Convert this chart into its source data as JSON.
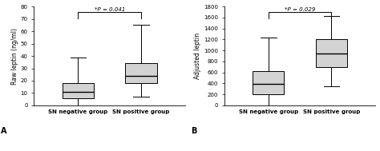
{
  "left_plot": {
    "ylabel": "Raw leptin (ng/ml)",
    "xlabel_A": "A",
    "ylim": [
      0,
      80
    ],
    "yticks": [
      0,
      10,
      20,
      30,
      40,
      50,
      60,
      70,
      80
    ],
    "pvalue_text": "*P = 0.041",
    "categories": [
      "SN negative group",
      "SN positive group"
    ],
    "box1": {
      "whislo": 0,
      "q1": 6,
      "med": 11,
      "q3": 18,
      "whishi": 39
    },
    "box2": {
      "whislo": 7,
      "q1": 18,
      "med": 24,
      "q3": 34,
      "whishi": 65
    }
  },
  "right_plot": {
    "ylabel": "Adjusted leptin",
    "xlabel_B": "B",
    "ylim": [
      0,
      1800
    ],
    "yticks": [
      0,
      200,
      400,
      600,
      800,
      1000,
      1200,
      1400,
      1600,
      1800
    ],
    "pvalue_text": "*P = 0.029",
    "categories": [
      "SN negative group",
      "SN positive group"
    ],
    "box1": {
      "whislo": 0,
      "q1": 200,
      "med": 390,
      "q3": 620,
      "whishi": 1230
    },
    "box2": {
      "whislo": 350,
      "q1": 700,
      "med": 950,
      "q3": 1200,
      "whishi": 1620
    }
  },
  "box_facecolor": "#d3d3d3",
  "box_edgecolor": "#000000",
  "background_color": "#ffffff",
  "figsize": [
    4.74,
    1.89
  ],
  "dpi": 100
}
